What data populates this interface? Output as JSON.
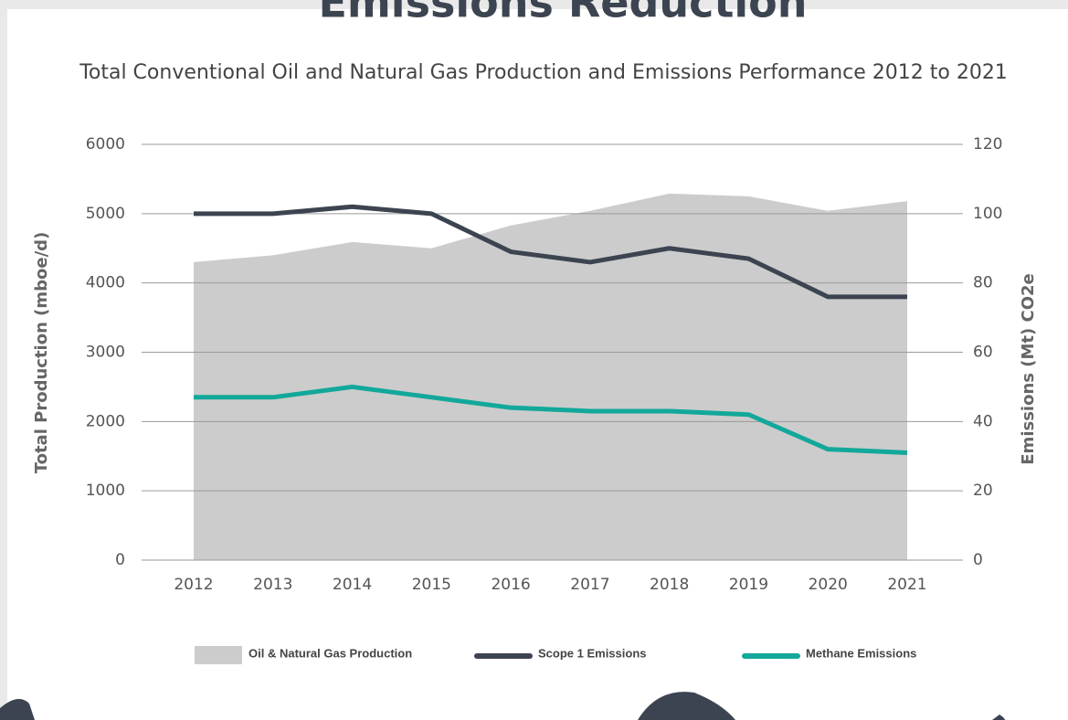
{
  "chart_data": {
    "type": "area-line",
    "title": "Emissions Reduction",
    "subtitle": "Total Conventional Oil and Natural Gas Production and Emissions Performance 2012 to 2021",
    "y_label": "Total Production (mboe/d)",
    "y2_label": "Emissions (Mt) CO2e",
    "categories": [
      "2012",
      "2013",
      "2014",
      "2015",
      "2016",
      "2017",
      "2018",
      "2019",
      "2020",
      "2021"
    ],
    "series": [
      {
        "name": "Oil & Natural Gas Production",
        "type": "area",
        "color": "#cccccc",
        "axis": "y",
        "values": [
          4300,
          4400,
          4590,
          4500,
          4830,
          5040,
          5290,
          5250,
          5040,
          5180
        ]
      },
      {
        "name": "Scope 1 Emissions",
        "type": "line",
        "color": "#3d4451",
        "axis": "y2",
        "values": [
          100,
          100,
          102,
          100,
          89,
          86,
          90,
          87,
          76,
          76
        ]
      },
      {
        "name": "Methane Emissions",
        "type": "line",
        "color": "#12a89a",
        "axis": "y2",
        "values": [
          47,
          47,
          50,
          47,
          44,
          43,
          43,
          42,
          32,
          31
        ]
      }
    ],
    "ylim": [
      0,
      6000
    ],
    "yticks": [
      0,
      1000,
      2000,
      3000,
      4000,
      5000,
      6000
    ],
    "y2lim": [
      0,
      120
    ],
    "y2ticks": [
      0,
      20,
      40,
      60,
      80,
      100,
      120
    ],
    "grid": true,
    "legend": "bottom"
  }
}
